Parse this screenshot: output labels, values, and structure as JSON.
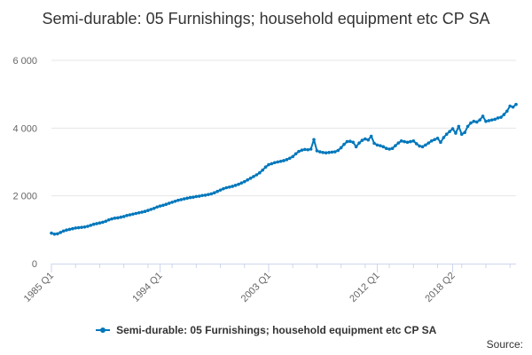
{
  "chart_data": {
    "type": "line",
    "title": "Semi-durable: 05 Furnishings; household equipment etc CP SA",
    "xlabel": "",
    "ylabel": "",
    "ylim": [
      0,
      6000
    ],
    "yticks": [
      0,
      2000,
      4000,
      6000
    ],
    "ytick_labels": [
      "0",
      "2 000",
      "4 000",
      "6 000"
    ],
    "xticks": [
      "1985 Q1",
      "1994 Q1",
      "2003 Q1",
      "2012 Q1",
      "2018 Q2"
    ],
    "grid": true,
    "legend_position": "bottom",
    "series": [
      {
        "name": "Semi-durable: 05 Furnishings; household equipment etc CP SA",
        "color": "#0077bb",
        "start": "1985 Q1",
        "frequency": "quarterly",
        "values": [
          900,
          870,
          880,
          920,
          960,
          990,
          1010,
          1030,
          1050,
          1060,
          1070,
          1080,
          1100,
          1130,
          1160,
          1180,
          1200,
          1220,
          1250,
          1290,
          1320,
          1340,
          1350,
          1370,
          1390,
          1420,
          1440,
          1460,
          1480,
          1500,
          1520,
          1540,
          1570,
          1600,
          1630,
          1670,
          1700,
          1720,
          1750,
          1780,
          1810,
          1840,
          1870,
          1890,
          1910,
          1930,
          1950,
          1960,
          1980,
          1990,
          2010,
          2020,
          2040,
          2060,
          2090,
          2130,
          2170,
          2210,
          2240,
          2260,
          2280,
          2310,
          2340,
          2380,
          2420,
          2470,
          2520,
          2570,
          2620,
          2680,
          2760,
          2850,
          2920,
          2950,
          2980,
          3000,
          3020,
          3040,
          3070,
          3110,
          3160,
          3240,
          3310,
          3350,
          3370,
          3360,
          3380,
          3660,
          3330,
          3300,
          3280,
          3270,
          3280,
          3290,
          3300,
          3340,
          3420,
          3520,
          3600,
          3610,
          3580,
          3450,
          3560,
          3640,
          3680,
          3650,
          3760,
          3550,
          3500,
          3480,
          3450,
          3400,
          3380,
          3400,
          3480,
          3560,
          3620,
          3600,
          3580,
          3600,
          3620,
          3540,
          3470,
          3450,
          3500,
          3560,
          3620,
          3660,
          3700,
          3580,
          3720,
          3820,
          3900,
          3980,
          3850,
          4050,
          3820,
          3870,
          4050,
          4150,
          4200,
          4180,
          4240,
          4350,
          4200,
          4220,
          4240,
          4260,
          4300,
          4320,
          4400,
          4500,
          4650,
          4620,
          4700
        ]
      }
    ]
  },
  "legend": {
    "label": "Semi-durable: 05 Furnishings; household equipment etc CP SA"
  },
  "source_label": "Source:"
}
